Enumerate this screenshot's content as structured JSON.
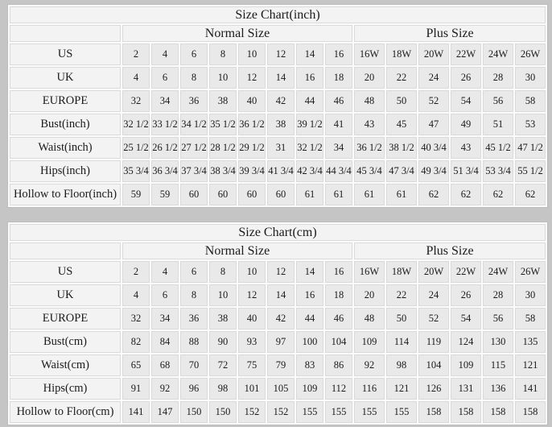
{
  "chart_data": [
    {
      "type": "table",
      "title": "Size Chart(inch)",
      "group_headers": [
        {
          "label": "Normal Size",
          "colspan": "8"
        },
        {
          "label": "Plus Size",
          "colspan": "6"
        }
      ],
      "size_columns": [
        "2",
        "4",
        "6",
        "8",
        "10",
        "12",
        "14",
        "16",
        "16W",
        "18W",
        "20W",
        "22W",
        "24W",
        "26W"
      ],
      "rows": [
        {
          "label": "US",
          "values": [
            "2",
            "4",
            "6",
            "8",
            "10",
            "12",
            "14",
            "16",
            "16W",
            "18W",
            "20W",
            "22W",
            "24W",
            "26W"
          ]
        },
        {
          "label": "UK",
          "values": [
            "4",
            "6",
            "8",
            "10",
            "12",
            "14",
            "16",
            "18",
            "20",
            "22",
            "24",
            "26",
            "28",
            "30"
          ]
        },
        {
          "label": "EUROPE",
          "values": [
            "32",
            "34",
            "36",
            "38",
            "40",
            "42",
            "44",
            "46",
            "48",
            "50",
            "52",
            "54",
            "56",
            "58"
          ]
        },
        {
          "label": "Bust(inch)",
          "values": [
            "32 1/2",
            "33 1/2",
            "34 1/2",
            "35 1/2",
            "36 1/2",
            "38",
            "39 1/2",
            "41",
            "43",
            "45",
            "47",
            "49",
            "51",
            "53"
          ]
        },
        {
          "label": "Waist(inch)",
          "values": [
            "25 1/2",
            "26 1/2",
            "27 1/2",
            "28 1/2",
            "29 1/2",
            "31",
            "32 1/2",
            "34",
            "36 1/2",
            "38 1/2",
            "40 3/4",
            "43",
            "45 1/2",
            "47 1/2"
          ]
        },
        {
          "label": "Hips(inch)",
          "values": [
            "35 3/4",
            "36 3/4",
            "37 3/4",
            "38 3/4",
            "39 3/4",
            "41 3/4",
            "42 3/4",
            "44 3/4",
            "45 3/4",
            "47 3/4",
            "49 3/4",
            "51 3/4",
            "53 3/4",
            "55 1/2"
          ]
        },
        {
          "label": "Hollow to Floor(inch)",
          "values": [
            "59",
            "59",
            "60",
            "60",
            "60",
            "60",
            "61",
            "61",
            "61",
            "61",
            "62",
            "62",
            "62",
            "62"
          ]
        }
      ]
    },
    {
      "type": "table",
      "title": "Size Chart(cm)",
      "group_headers": [
        {
          "label": "Normal Size",
          "colspan": "8"
        },
        {
          "label": "Plus Size",
          "colspan": "6"
        }
      ],
      "size_columns": [
        "2",
        "4",
        "6",
        "8",
        "10",
        "12",
        "14",
        "16",
        "16W",
        "18W",
        "20W",
        "22W",
        "24W",
        "26W"
      ],
      "rows": [
        {
          "label": "US",
          "values": [
            "2",
            "4",
            "6",
            "8",
            "10",
            "12",
            "14",
            "16",
            "16W",
            "18W",
            "20W",
            "22W",
            "24W",
            "26W"
          ]
        },
        {
          "label": "UK",
          "values": [
            "4",
            "6",
            "8",
            "10",
            "12",
            "14",
            "16",
            "18",
            "20",
            "22",
            "24",
            "26",
            "28",
            "30"
          ]
        },
        {
          "label": "EUROPE",
          "values": [
            "32",
            "34",
            "36",
            "38",
            "40",
            "42",
            "44",
            "46",
            "48",
            "50",
            "52",
            "54",
            "56",
            "58"
          ]
        },
        {
          "label": "Bust(cm)",
          "values": [
            "82",
            "84",
            "88",
            "90",
            "93",
            "97",
            "100",
            "104",
            "109",
            "114",
            "119",
            "124",
            "130",
            "135"
          ]
        },
        {
          "label": "Waist(cm)",
          "values": [
            "65",
            "68",
            "70",
            "72",
            "75",
            "79",
            "83",
            "86",
            "92",
            "98",
            "104",
            "109",
            "115",
            "121"
          ]
        },
        {
          "label": "Hips(cm)",
          "values": [
            "91",
            "92",
            "96",
            "98",
            "101",
            "105",
            "109",
            "112",
            "116",
            "121",
            "126",
            "131",
            "136",
            "141"
          ]
        },
        {
          "label": "Hollow to Floor(cm)",
          "values": [
            "141",
            "147",
            "150",
            "150",
            "152",
            "152",
            "155",
            "155",
            "155",
            "155",
            "158",
            "158",
            "158",
            "158"
          ]
        }
      ]
    }
  ],
  "colors": {
    "page_background": "#c5c5c5",
    "header_cell": "#f3f3f3",
    "data_cell": "#e9e9e9",
    "grid_gap": "#fbfbfb",
    "text": "#1b1b1b"
  }
}
